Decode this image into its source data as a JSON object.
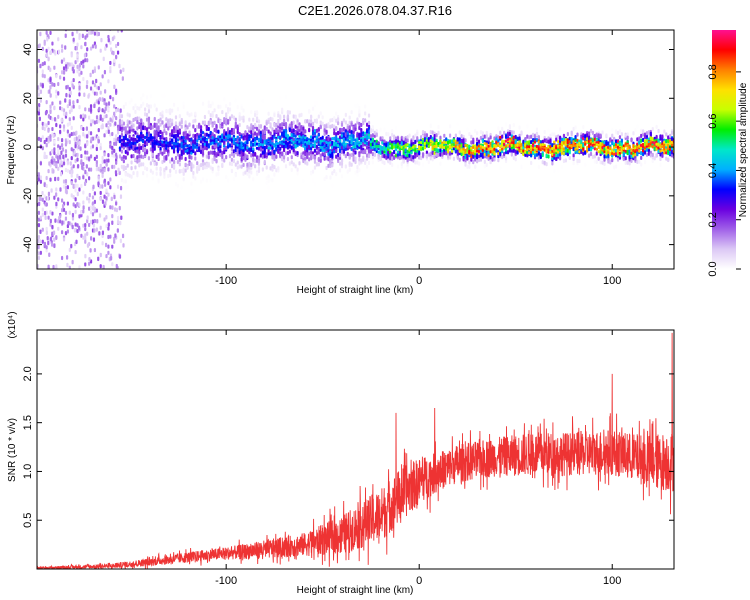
{
  "title": "C2E1.2026.078.04.37.R16",
  "colors": {
    "snr_line": "#ee3333",
    "frame": "#000000"
  },
  "chart_data": [
    {
      "type": "heatmap",
      "title": "C2E1.2026.078.04.37.R16",
      "xlabel": "Height of straight line (km)",
      "ylabel": "Frequency (Hz)",
      "xlim": [
        -198,
        132
      ],
      "ylim": [
        -50,
        48
      ],
      "xticks": [
        -100,
        0,
        100
      ],
      "yticks": [
        40,
        20,
        0,
        -20,
        -40
      ],
      "colorbar": {
        "label": "Normalized spectral amplitude",
        "range": [
          0,
          0.97
        ],
        "ticks": [
          0.0,
          0.2,
          0.4,
          0.6,
          0.8
        ],
        "tick_labels": [
          "0.0",
          "0.2",
          "0.4",
          "0.6",
          "0.8"
        ],
        "colormap": [
          "#ffffff",
          "#dcc8f5",
          "#a060e8",
          "#6a00e0",
          "#0000ff",
          "#00b0ff",
          "#00e8c8",
          "#00ee00",
          "#c8ff00",
          "#ffe000",
          "#ff8000",
          "#ff0000",
          "#ff1090"
        ]
      },
      "segments": [
        {
          "x_range": [
            -198,
            -155
          ],
          "center_hz": 0,
          "spread_hz": 50,
          "amplitude": 0.12,
          "note": "scattered noise"
        },
        {
          "x_range": [
            -155,
            -25
          ],
          "center_hz": 2,
          "spread_hz": 10,
          "amplitude": 0.3
        },
        {
          "x_range": [
            -25,
            132
          ],
          "center_hz": 0,
          "spread_hz": 4,
          "amplitude": 0.85
        }
      ]
    },
    {
      "type": "line",
      "xlabel": "Height of straight line (km)",
      "ylabel": "SNR (10 * v/v)",
      "scale_label": "(x10⁴)",
      "xlim": [
        -198,
        132
      ],
      "ylim": [
        0,
        2.45
      ],
      "xticks": [
        -100,
        0,
        100
      ],
      "yticks": [
        0.5,
        1.0,
        1.5,
        2.0
      ],
      "ytick_labels": [
        "0.5",
        "1.0",
        "1.5",
        "2.0"
      ],
      "series": [
        {
          "name": "SNR",
          "x": [
            -198,
            -180,
            -160,
            -150,
            -140,
            -120,
            -100,
            -80,
            -60,
            -40,
            -30,
            -20,
            -10,
            0,
            10,
            20,
            40,
            60,
            80,
            100,
            110,
            120,
            132
          ],
          "values": [
            0.01,
            0.02,
            0.03,
            0.05,
            0.07,
            0.12,
            0.16,
            0.2,
            0.25,
            0.35,
            0.45,
            0.55,
            0.75,
            0.9,
            1.0,
            1.08,
            1.15,
            1.18,
            1.18,
            1.2,
            1.15,
            1.1,
            1.1
          ],
          "noise_amplitude": [
            0.01,
            0.02,
            0.03,
            0.04,
            0.05,
            0.07,
            0.08,
            0.12,
            0.15,
            0.25,
            0.3,
            0.35,
            0.35,
            0.3,
            0.25,
            0.25,
            0.25,
            0.28,
            0.28,
            0.3,
            0.3,
            0.35,
            0.4
          ],
          "peaks": [
            {
              "x": -12,
              "y": 1.6
            },
            {
              "x": 8,
              "y": 1.65
            },
            {
              "x": 100,
              "y": 2.0
            },
            {
              "x": 131,
              "y": 2.42
            }
          ]
        }
      ]
    }
  ]
}
